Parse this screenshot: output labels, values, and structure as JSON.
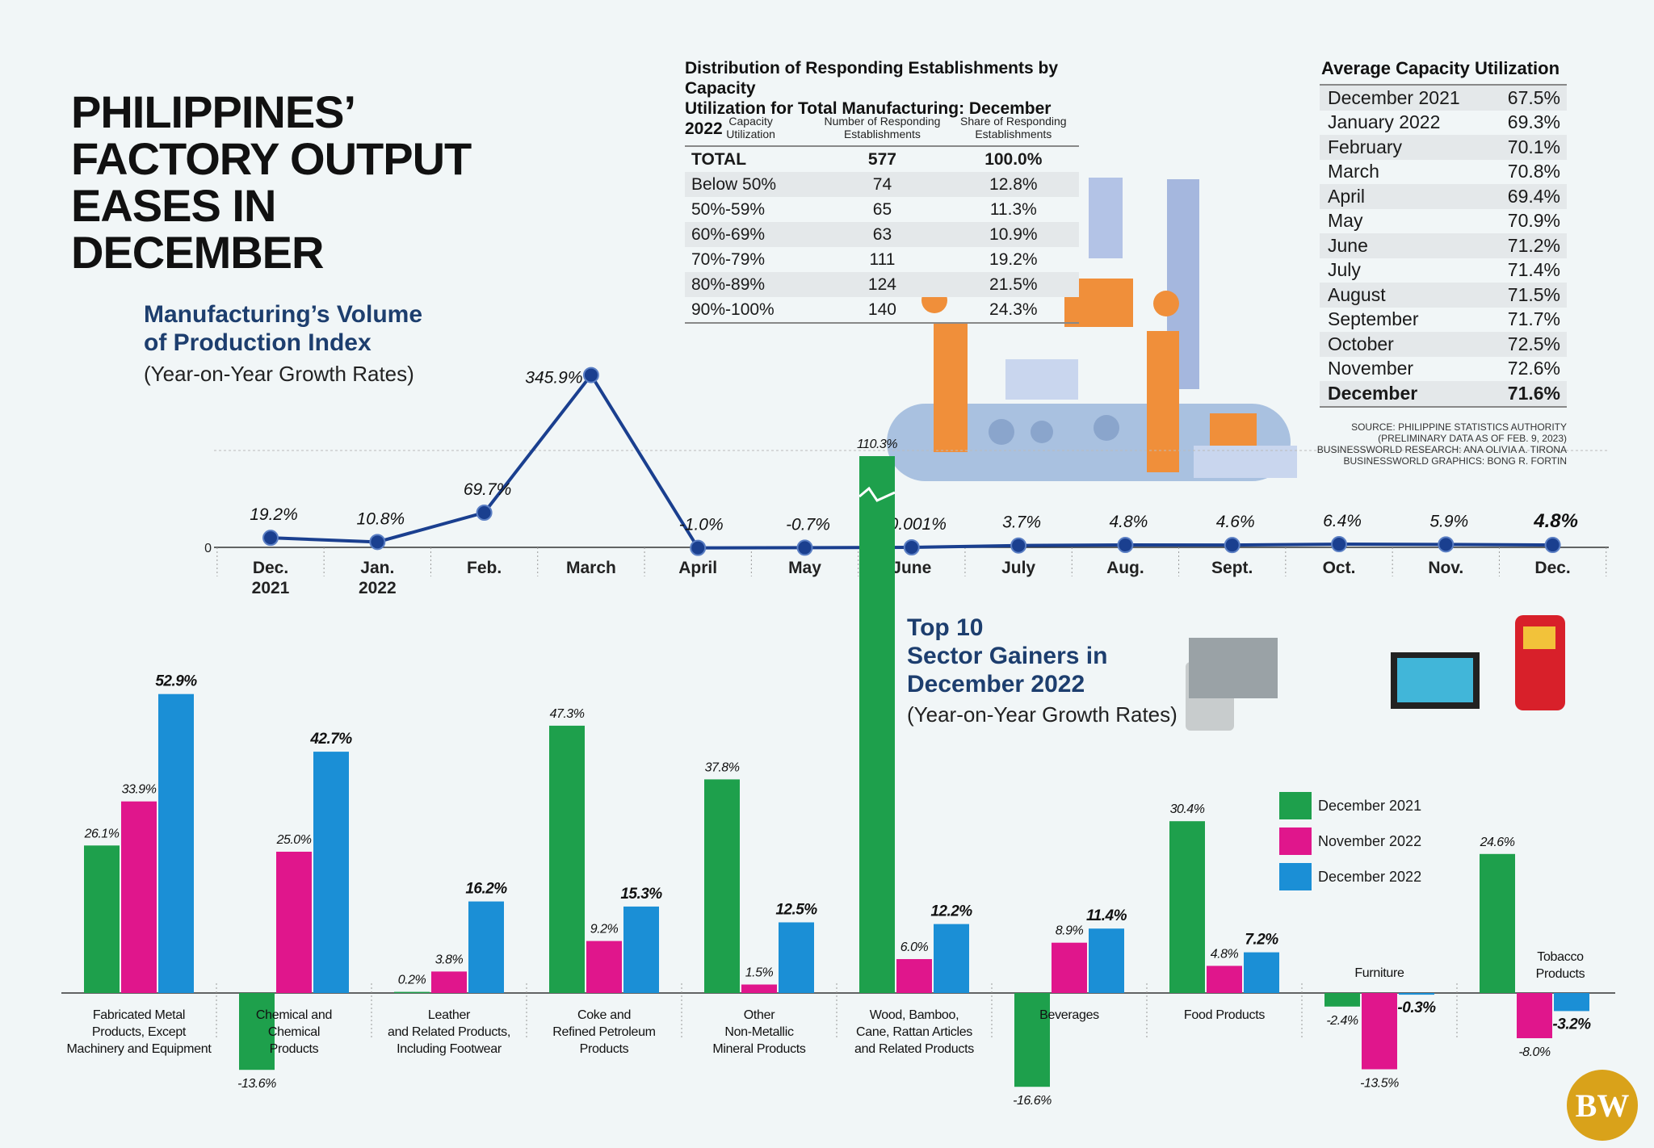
{
  "title": [
    "PHILIPPINES’",
    "FACTORY OUTPUT",
    "EASES IN DECEMBER"
  ],
  "chart_data": [
    {
      "type": "line",
      "title": [
        "Manufacturing’s Volume",
        "of Production Index"
      ],
      "subtitle": "(Year-on-Year Growth Rates)",
      "categories": [
        [
          "Dec.",
          "2021"
        ],
        [
          "Jan.",
          "2022"
        ],
        [
          "Feb."
        ],
        [
          "March"
        ],
        [
          "April"
        ],
        [
          "May"
        ],
        [
          "June"
        ],
        [
          "July"
        ],
        [
          "Aug."
        ],
        [
          "Sept."
        ],
        [
          "Oct."
        ],
        [
          "Nov."
        ],
        [
          "Dec."
        ]
      ],
      "values": [
        19.2,
        10.8,
        69.7,
        345.9,
        -1.0,
        -0.7,
        -0.001,
        3.7,
        4.8,
        4.6,
        6.4,
        5.9,
        4.8
      ],
      "labels": [
        "19.2%",
        "10.8%",
        "69.7%",
        "345.9%",
        "-1.0%",
        "-0.7%",
        "-0.001%",
        "3.7%",
        "4.8%",
        "4.6%",
        "6.4%",
        "5.9%",
        "4.8%"
      ],
      "zero_label": "0",
      "color": "#1a3f8f"
    },
    {
      "type": "bar",
      "title": [
        "Top 10",
        "Sector Gainers in",
        "December 2022"
      ],
      "subtitle": "(Year-on-Year Growth Rates)",
      "categories": [
        [
          "Fabricated Metal",
          "Products, Except",
          "Machinery and Equipment"
        ],
        [
          "Chemical and",
          "Chemical",
          "Products"
        ],
        [
          "Leather",
          "and Related Products,",
          "Including Footwear"
        ],
        [
          "Coke and",
          "Refined Petroleum",
          "Products"
        ],
        [
          "Other",
          "Non-Metallic",
          "Mineral Products"
        ],
        [
          "Wood, Bamboo,",
          "Cane, Rattan Articles",
          "and Related Products"
        ],
        [
          "Beverages"
        ],
        [
          "Food Products"
        ],
        [
          "Furniture"
        ],
        [
          "Tobacco",
          "Products"
        ]
      ],
      "series": [
        {
          "name": "December 2021",
          "color": "#1ea04c",
          "values": [
            26.1,
            -13.6,
            0.2,
            47.3,
            37.8,
            110.3,
            -16.6,
            30.4,
            -2.4,
            24.6
          ],
          "labels": [
            "26.1%",
            "-13.6%",
            "0.2%",
            "47.3%",
            "37.8%",
            "110.3%",
            "-16.6%",
            "30.4%",
            "-2.4%",
            "24.6%"
          ]
        },
        {
          "name": "November 2022",
          "color": "#e0168c",
          "values": [
            33.9,
            25.0,
            3.8,
            9.2,
            1.5,
            6.0,
            8.9,
            4.8,
            -13.5,
            -8.0
          ],
          "labels": [
            "33.9%",
            "25.0%",
            "3.8%",
            "9.2%",
            "1.5%",
            "6.0%",
            "8.9%",
            "4.8%",
            "-13.5%",
            "-8.0%"
          ]
        },
        {
          "name": "December 2022",
          "color": "#1b8fd6",
          "values": [
            52.9,
            42.7,
            16.2,
            15.3,
            12.5,
            12.2,
            11.4,
            7.2,
            -0.3,
            -3.2
          ],
          "labels": [
            "52.9%",
            "42.7%",
            "16.2%",
            "15.3%",
            "12.5%",
            "12.2%",
            "11.4%",
            "7.2%",
            "-0.3%",
            "-3.2%"
          ]
        }
      ]
    }
  ],
  "dist_table": {
    "title": [
      "Distribution of Responding Establishments by Capacity",
      "Utilization for Total Manufacturing: December 2022"
    ],
    "headers": [
      [
        "Capacity",
        "Utilization"
      ],
      [
        "Number of Responding",
        "Establishments"
      ],
      [
        "Share of Responding",
        "Establishments"
      ]
    ],
    "rows": [
      [
        "TOTAL",
        "577",
        "100.0%"
      ],
      [
        "Below 50%",
        "74",
        "12.8%"
      ],
      [
        "50%-59%",
        "65",
        "11.3%"
      ],
      [
        "60%-69%",
        "63",
        "10.9%"
      ],
      [
        "70%-79%",
        "111",
        "19.2%"
      ],
      [
        "80%-89%",
        "124",
        "21.5%"
      ],
      [
        "90%-100%",
        "140",
        "24.3%"
      ]
    ]
  },
  "avg_table": {
    "title": "Average Capacity Utilization",
    "rows": [
      [
        "December 2021",
        "67.5%"
      ],
      [
        "January 2022",
        "69.3%"
      ],
      [
        "February",
        "70.1%"
      ],
      [
        "March",
        "70.8%"
      ],
      [
        "April",
        "69.4%"
      ],
      [
        "May",
        "70.9%"
      ],
      [
        "June",
        "71.2%"
      ],
      [
        "July",
        "71.4%"
      ],
      [
        "August",
        "71.5%"
      ],
      [
        "September",
        "71.7%"
      ],
      [
        "October",
        "72.5%"
      ],
      [
        "November",
        "72.6%"
      ],
      [
        "December",
        "71.6%"
      ]
    ]
  },
  "source": [
    "SOURCE: PHILIPPINE STATISTICS AUTHORITY",
    "(PRELIMINARY DATA AS OF FEB. 9, 2023)",
    "BUSINESSWORLD RESEARCH: ANA OLIVIA A. TIRONA",
    "BUSINESSWORLD GRAPHICS: BONG R. FORTIN"
  ],
  "logo": "BW"
}
